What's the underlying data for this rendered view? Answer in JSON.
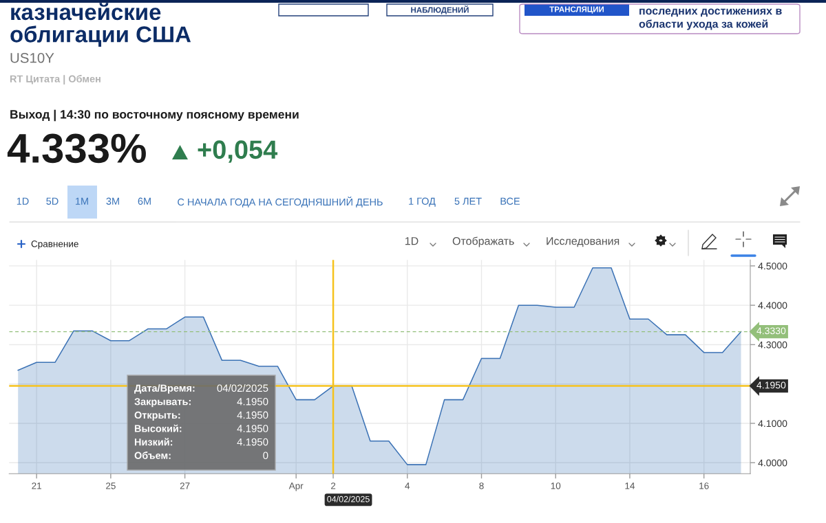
{
  "chart_data": {
    "type": "area",
    "title": "казначейские облигации США",
    "subtitle": "US10Y",
    "annotations": [
      "RT Цитата | Обмен",
      "Выход | 14:30 по восточному поясному времени",
      "4.333%",
      "+0,054",
      "1D",
      "5D",
      "1M",
      "3M",
      "6M",
      "С НАЧАЛА ГОДА НА СЕГОДНЯШНИЙ ДЕНЬ",
      "1 ГОД",
      "5 ЛЕТ",
      "ВСЕ",
      "Сравнение",
      "1D",
      "Отображать",
      "Исследования",
      "Дата/Время:",
      "04/02/2025",
      "Закрывать:",
      "4.1950",
      "Открыть:",
      "4.1950",
      "Высокий:",
      "4.1950",
      "Низкий:",
      "4.1950",
      "Объем:",
      "0",
      "НАБЛЮДЕНИЙ",
      "ТРАНСЛЯЦИИ",
      "последних достижениях в",
      "области ухода за кожей"
    ],
    "categories": [
      null,
      "21",
      null,
      null,
      null,
      "25",
      null,
      null,
      null,
      "27",
      null,
      null,
      null,
      null,
      null,
      "Apr",
      null,
      "2",
      null,
      null,
      null,
      "4",
      null,
      null,
      null,
      "8",
      null,
      null,
      null,
      "10",
      null,
      null,
      null,
      "14",
      null,
      null,
      null,
      "16",
      null,
      null
    ],
    "series": [
      {
        "color": "#3b72b5",
        "values": [
          4.235,
          4.255,
          4.255,
          4.335,
          4.335,
          4.31,
          4.31,
          4.34,
          4.34,
          4.37,
          4.37,
          4.26,
          4.26,
          4.245,
          4.245,
          4.16,
          4.16,
          4.195,
          4.195,
          4.055,
          4.055,
          3.995,
          3.995,
          4.16,
          4.16,
          4.265,
          4.265,
          4.4,
          4.4,
          4.395,
          4.395,
          4.495,
          4.495,
          4.365,
          4.365,
          4.325,
          4.325,
          4.28,
          4.28,
          4.333
        ]
      }
    ],
    "ylim": [
      3.972,
      4.515
    ],
    "yticks": [
      {
        "value": 4.0,
        "label": "4.0000"
      },
      {
        "value": 4.1,
        "label": "4.1000"
      },
      {
        "value": 4.2,
        "label": null
      },
      {
        "value": 4.3,
        "label": "4.3000"
      },
      {
        "value": 4.4,
        "label": "4.4000"
      },
      {
        "value": 4.5,
        "label": "4.5000"
      }
    ],
    "grid": true,
    "ref_lines": [
      {
        "axis": "y",
        "value": 4.333,
        "label": "4.3330",
        "color": "#93bf7a",
        "line_style": "dashed"
      },
      {
        "axis": "y",
        "value": 4.195,
        "label": "4.1950",
        "color": "#f6c21c"
      },
      {
        "axis": "x",
        "value": "2",
        "label": "04/02/2025",
        "color": "#f6c21c"
      }
    ]
  }
}
